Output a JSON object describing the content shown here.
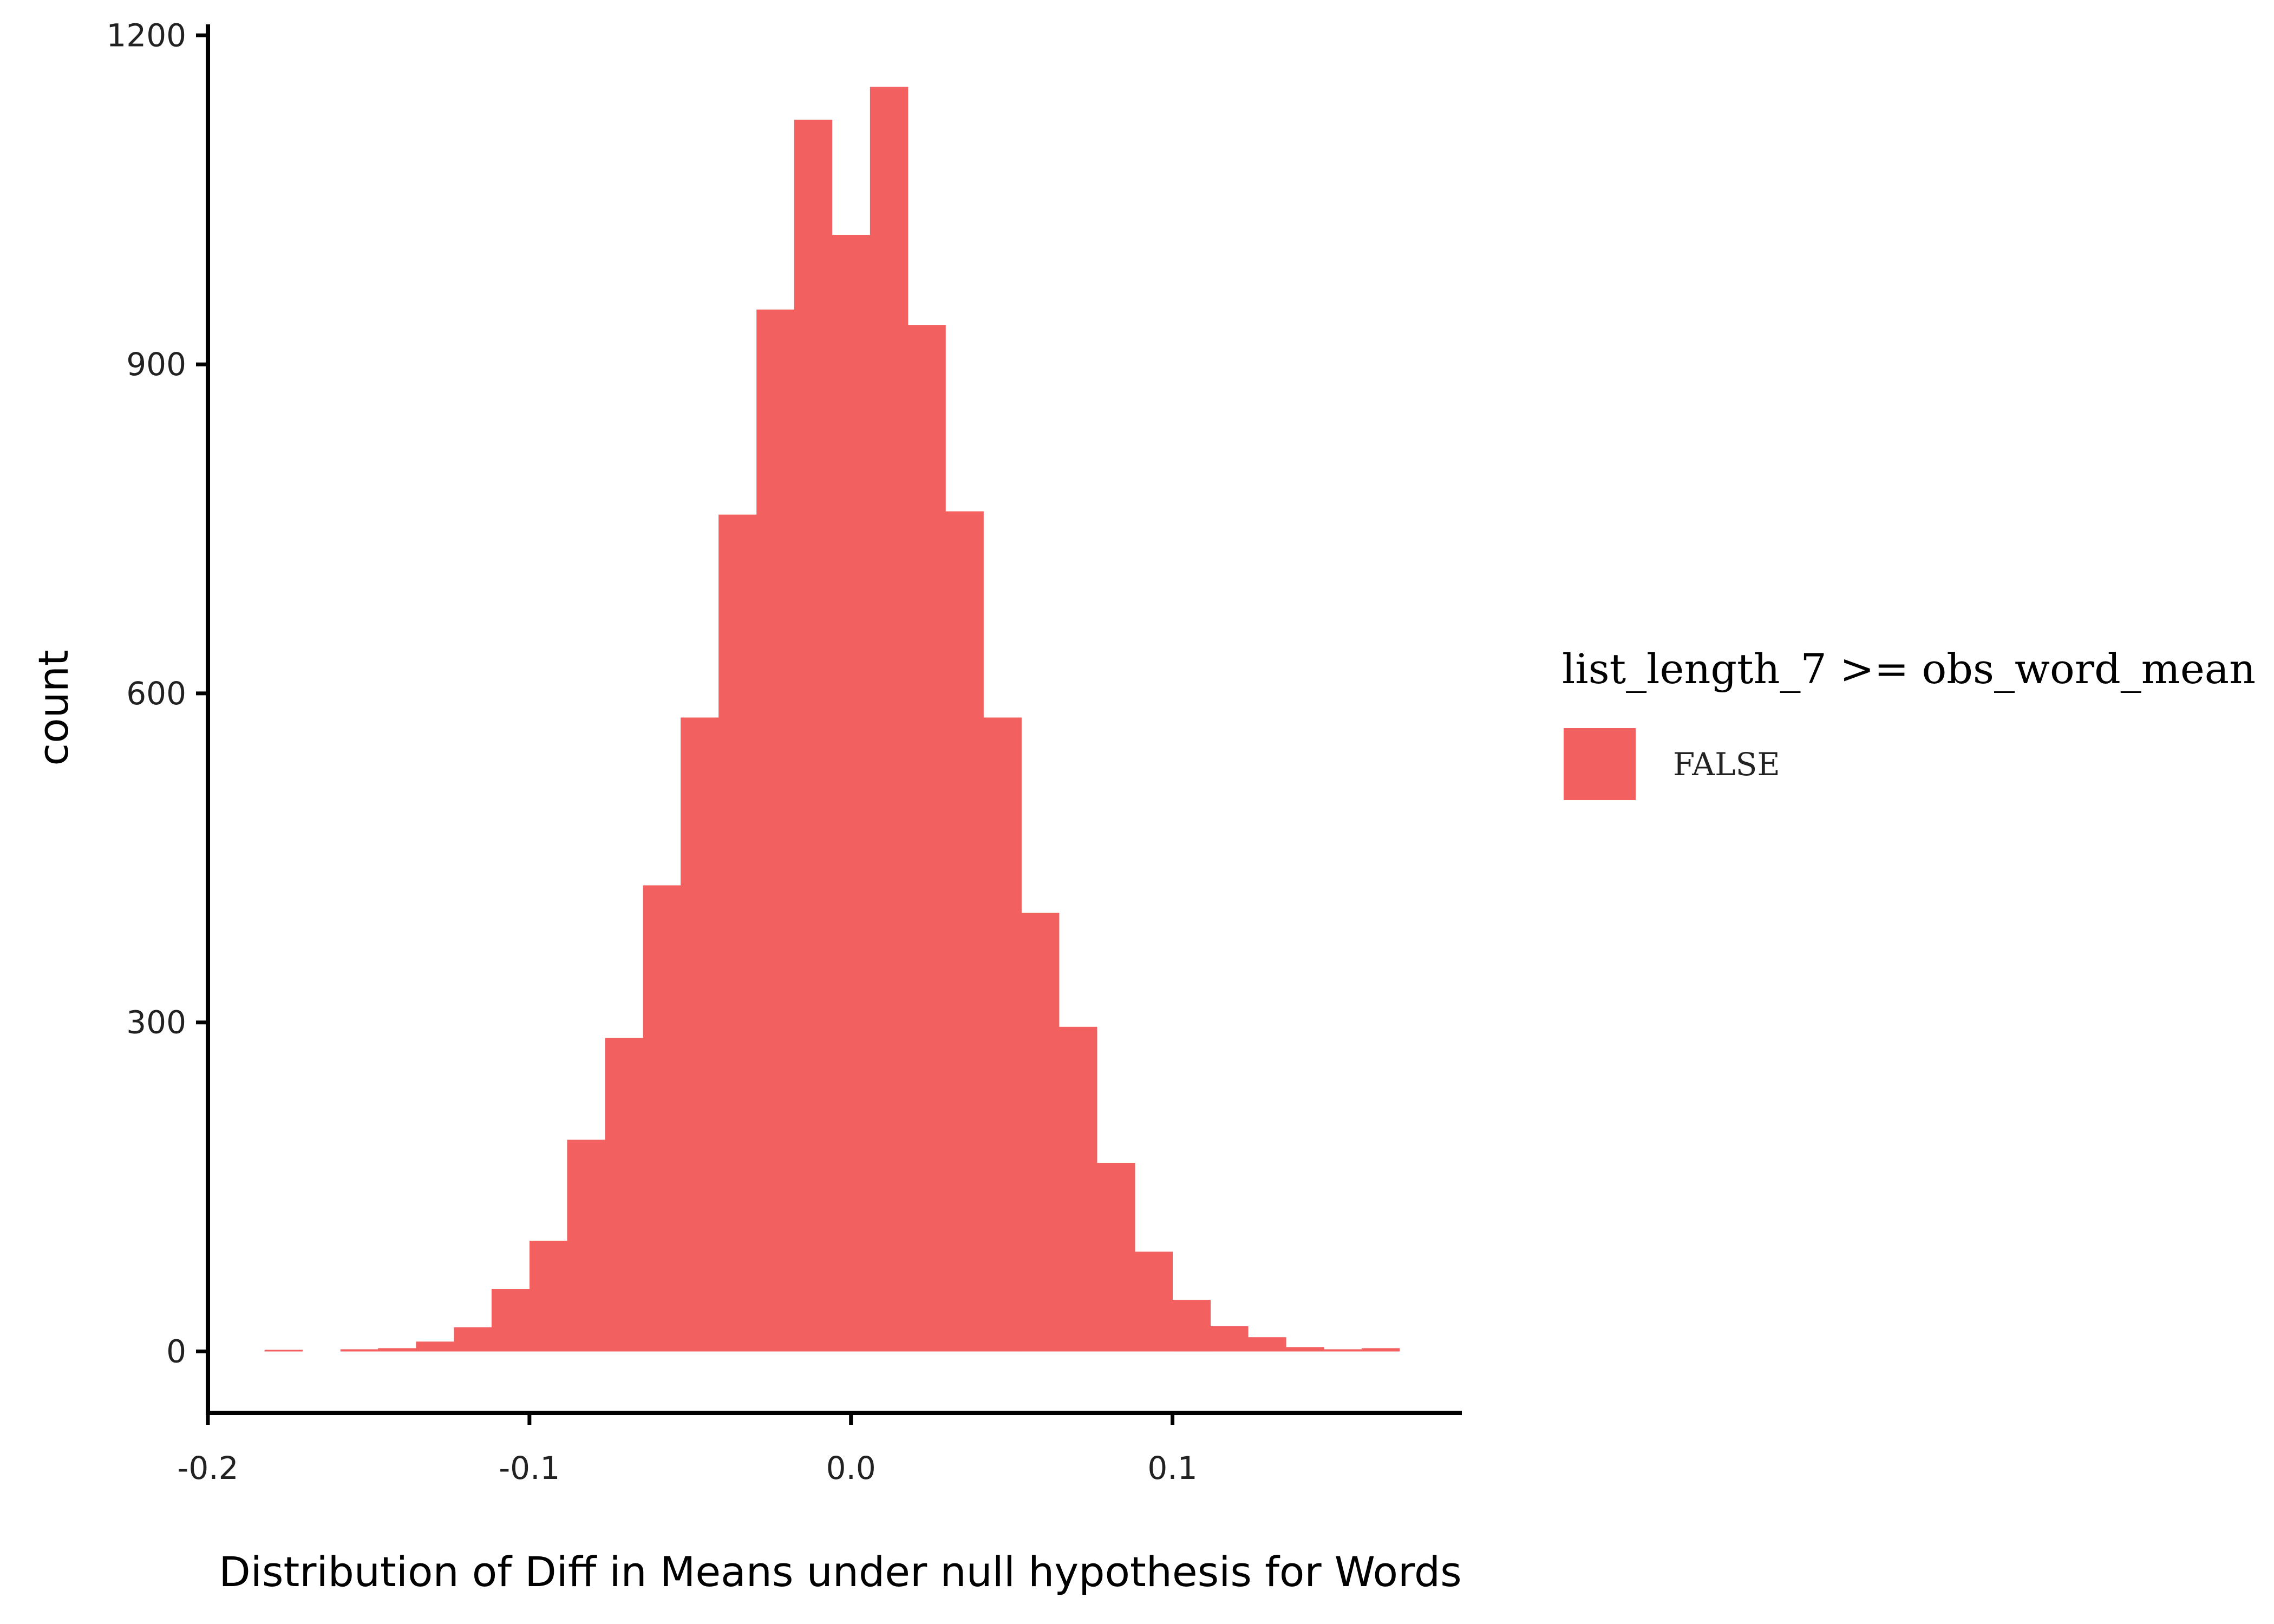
{
  "chart_data": {
    "type": "bar",
    "xlabel": "Distribution of Diff in Means under null hypothesis for Words",
    "ylabel": "count",
    "x_ticks": [
      "-0.2",
      "-0.1",
      "0.0",
      "0.1"
    ],
    "x_tick_values": [
      -0.2,
      -0.1,
      0.0,
      0.1
    ],
    "y_ticks": [
      "0",
      "300",
      "600",
      "900",
      "1200"
    ],
    "y_tick_values": [
      0,
      300,
      600,
      900,
      1200
    ],
    "xlim": [
      -0.2,
      0.19
    ],
    "ylim": [
      -56,
      1210
    ],
    "bin_width": 0.01176,
    "bin_centers": [
      -0.1765,
      -0.1647,
      -0.1529,
      -0.1412,
      -0.1294,
      -0.1176,
      -0.1059,
      -0.0941,
      -0.0824,
      -0.0706,
      -0.0588,
      -0.0471,
      -0.0353,
      -0.0235,
      -0.0118,
      0.0,
      0.0118,
      0.0235,
      0.0353,
      0.0471,
      0.0588,
      0.0706,
      0.0824,
      0.0941,
      0.1059,
      0.1176,
      0.1294,
      0.1412,
      0.1529,
      0.1647
    ],
    "values": [
      1,
      0,
      2,
      3,
      9,
      22,
      57,
      101,
      193,
      286,
      425,
      578,
      763,
      950,
      1123,
      1018,
      1153,
      936,
      766,
      578,
      400,
      296,
      172,
      91,
      47,
      23,
      13,
      4,
      2,
      3
    ],
    "bar_color": "#F26060",
    "legend": {
      "title": "list_length_7 >= obs_word_mean",
      "entries": [
        {
          "label": "FALSE",
          "color": "#F26060"
        }
      ],
      "placement": "right"
    },
    "grid": false
  }
}
